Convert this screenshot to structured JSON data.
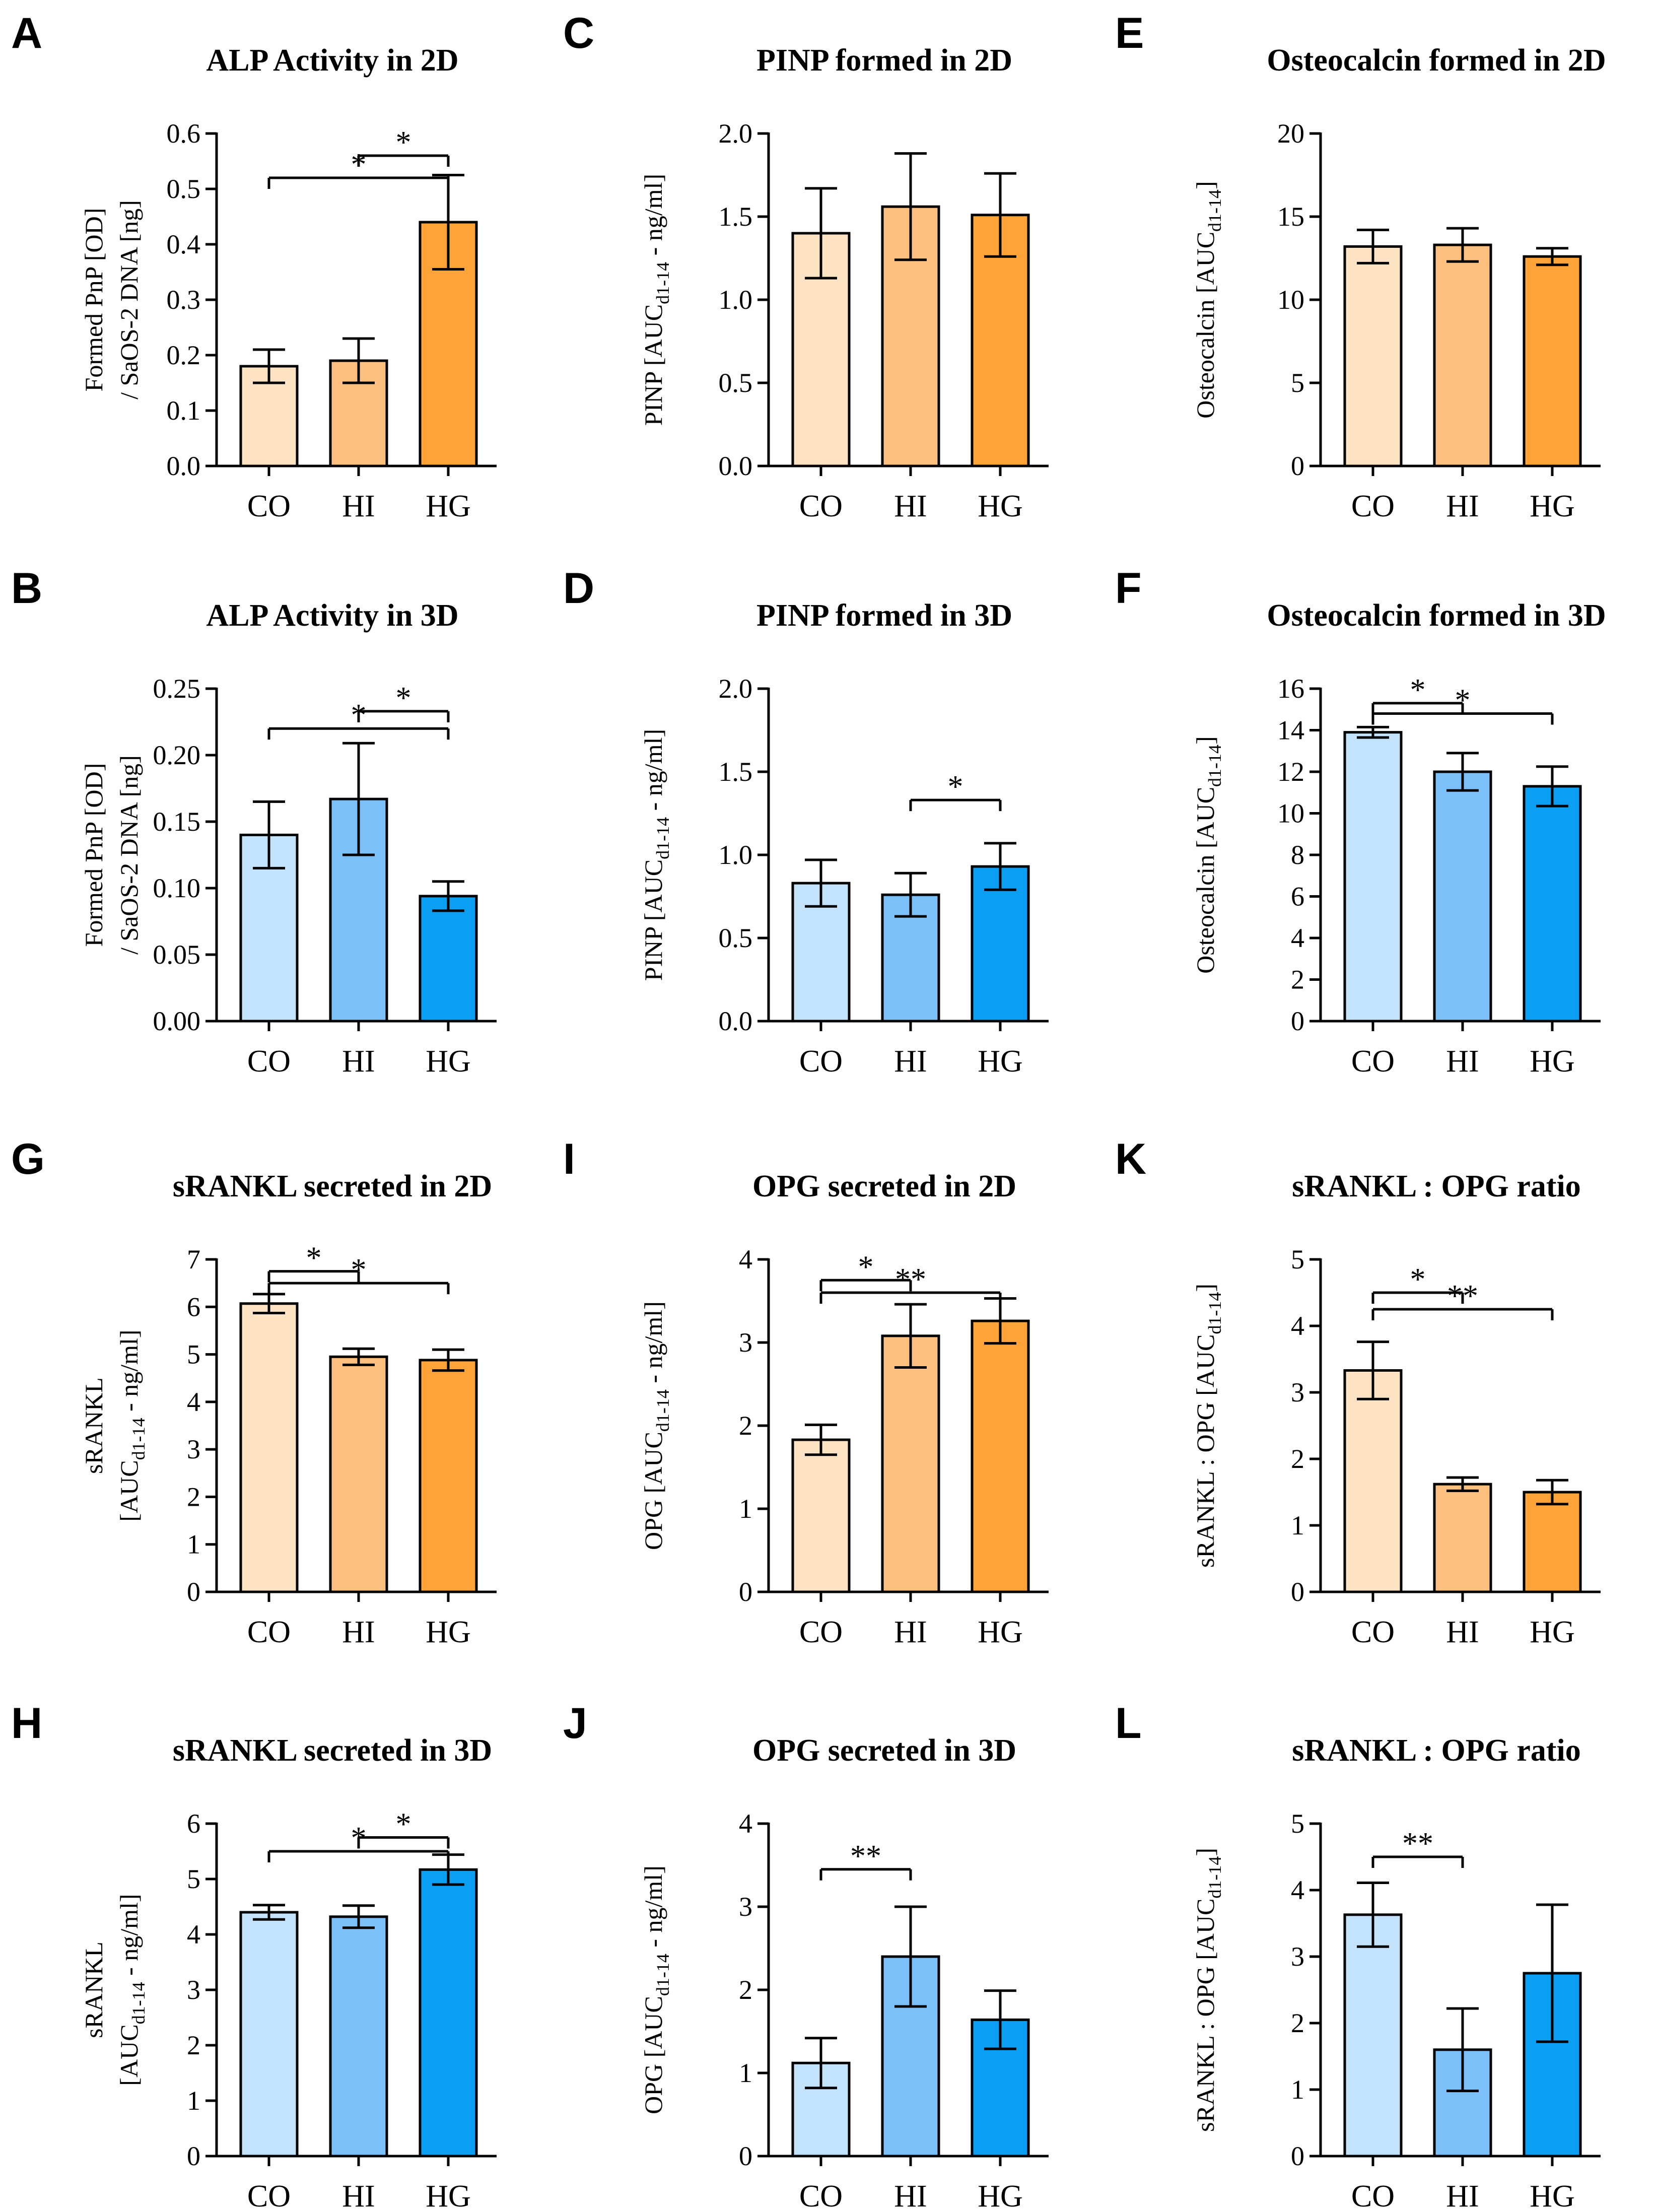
{
  "colors": {
    "orange_light": "#fde3c4",
    "orange_mid": "#fdc07e",
    "orange_dark": "#fda337",
    "blue_light": "#c3e2fb",
    "blue_mid": "#7cc0fa",
    "blue_dark": "#0b9ff3",
    "axis": "#000000"
  },
  "chart_data": [
    {
      "id": "A",
      "type": "bar",
      "title": "ALP Activity in 2D",
      "ylabel_lines": [
        "Formed PnP [OD]",
        "/ SaOS-2 DNA [ng]"
      ],
      "categories": [
        "CO",
        "HI",
        "HG"
      ],
      "values": [
        0.18,
        0.19,
        0.44
      ],
      "errors": [
        0.03,
        0.04,
        0.085
      ],
      "ylim": [
        0,
        0.6
      ],
      "yticks": [
        0,
        0.1,
        0.2,
        0.3,
        0.4,
        0.5,
        0.6
      ],
      "tick_labels": [
        "0.0",
        "0.1",
        "0.2",
        "0.3",
        "0.4",
        "0.5",
        "0.6"
      ],
      "palette": "orange",
      "significance": [
        {
          "from": 1,
          "to": 2,
          "label": "*",
          "level": 0.56
        },
        {
          "from": 0,
          "to": 2,
          "label": "*",
          "level": 0.52
        }
      ]
    },
    {
      "id": "C",
      "type": "bar",
      "title": "PINP formed in 2D",
      "ylabel_main": "PINP [AUC",
      "ylabel_sub": "d1-14",
      "ylabel_end": " - ng/ml]",
      "categories": [
        "CO",
        "HI",
        "HG"
      ],
      "values": [
        1.4,
        1.56,
        1.51
      ],
      "errors": [
        0.27,
        0.32,
        0.25
      ],
      "ylim": [
        0,
        2.0
      ],
      "yticks": [
        0,
        0.5,
        1.0,
        1.5,
        2.0
      ],
      "tick_labels": [
        "0.0",
        "0.5",
        "1.0",
        "1.5",
        "2.0"
      ],
      "palette": "orange",
      "significance": []
    },
    {
      "id": "E",
      "type": "bar",
      "title": "Osteocalcin formed in 2D",
      "ylabel_main": "Osteocalcin [AUC",
      "ylabel_sub": "d1-14",
      "ylabel_end": "]",
      "categories": [
        "CO",
        "HI",
        "HG"
      ],
      "values": [
        13.2,
        13.3,
        12.6
      ],
      "errors": [
        1.0,
        1.0,
        0.5
      ],
      "ylim": [
        0,
        20
      ],
      "yticks": [
        0,
        5,
        10,
        15,
        20
      ],
      "tick_labels": [
        "0",
        "5",
        "10",
        "15",
        "20"
      ],
      "palette": "orange",
      "significance": []
    },
    {
      "id": "B",
      "type": "bar",
      "title": "ALP Activity in 3D",
      "ylabel_lines": [
        "Formed PnP [OD]",
        "/ SaOS-2 DNA [ng]"
      ],
      "categories": [
        "CO",
        "HI",
        "HG"
      ],
      "values": [
        0.14,
        0.167,
        0.094
      ],
      "errors": [
        0.025,
        0.042,
        0.011
      ],
      "ylim": [
        0,
        0.25
      ],
      "yticks": [
        0,
        0.05,
        0.1,
        0.15,
        0.2,
        0.25
      ],
      "tick_labels": [
        "0.00",
        "0.05",
        "0.10",
        "0.15",
        "0.20",
        "0.25"
      ],
      "palette": "blue",
      "significance": [
        {
          "from": 1,
          "to": 2,
          "label": "*",
          "level": 0.233
        },
        {
          "from": 0,
          "to": 2,
          "label": "*",
          "level": 0.22
        }
      ]
    },
    {
      "id": "D",
      "type": "bar",
      "title": "PINP formed in 3D",
      "ylabel_main": "PINP [AUC",
      "ylabel_sub": "d1-14",
      "ylabel_end": " - ng/ml]",
      "categories": [
        "CO",
        "HI",
        "HG"
      ],
      "values": [
        0.83,
        0.76,
        0.93
      ],
      "errors": [
        0.14,
        0.13,
        0.14
      ],
      "ylim": [
        0,
        2.0
      ],
      "yticks": [
        0,
        0.5,
        1.0,
        1.5,
        2.0
      ],
      "tick_labels": [
        "0.0",
        "0.5",
        "1.0",
        "1.5",
        "2.0"
      ],
      "palette": "blue",
      "significance": [
        {
          "from": 1,
          "to": 2,
          "label": "*",
          "level": 1.33
        }
      ]
    },
    {
      "id": "F",
      "type": "bar",
      "title": "Osteocalcin formed in 3D",
      "ylabel_main": "Osteocalcin [AUC",
      "ylabel_sub": "d1-14",
      "ylabel_end": "]",
      "categories": [
        "CO",
        "HI",
        "HG"
      ],
      "values": [
        13.9,
        12.0,
        11.3
      ],
      "errors": [
        0.25,
        0.9,
        0.95
      ],
      "ylim": [
        0,
        16
      ],
      "yticks": [
        0,
        2,
        4,
        6,
        8,
        10,
        12,
        14,
        16
      ],
      "tick_labels": [
        "0",
        "2",
        "4",
        "6",
        "8",
        "10",
        "12",
        "14",
        "16"
      ],
      "palette": "blue",
      "significance": [
        {
          "from": 0,
          "to": 1,
          "label": "*",
          "level": 15.3
        },
        {
          "from": 0,
          "to": 2,
          "label": "*",
          "level": 14.8
        }
      ]
    },
    {
      "id": "G",
      "type": "bar",
      "title": "sRANKL secreted in 2D",
      "ylabel_lines": [
        "sRANKL"
      ],
      "ylabel_main": "[AUC",
      "ylabel_sub": "d1-14",
      "ylabel_end": " - ng/ml]",
      "categories": [
        "CO",
        "HI",
        "HG"
      ],
      "values": [
        6.07,
        4.95,
        4.88
      ],
      "errors": [
        0.2,
        0.17,
        0.22
      ],
      "ylim": [
        0,
        7
      ],
      "yticks": [
        0,
        1,
        2,
        3,
        4,
        5,
        6,
        7
      ],
      "tick_labels": [
        "0",
        "1",
        "2",
        "3",
        "4",
        "5",
        "6",
        "7"
      ],
      "palette": "orange",
      "significance": [
        {
          "from": 0,
          "to": 1,
          "label": "*",
          "level": 6.75
        },
        {
          "from": 0,
          "to": 2,
          "label": "*",
          "level": 6.5
        }
      ]
    },
    {
      "id": "I",
      "type": "bar",
      "title": "OPG secreted in 2D",
      "ylabel_main": "OPG [AUC",
      "ylabel_sub": "d1-14",
      "ylabel_end": " - ng/ml]",
      "categories": [
        "CO",
        "HI",
        "HG"
      ],
      "values": [
        1.83,
        3.08,
        3.26
      ],
      "errors": [
        0.18,
        0.38,
        0.27
      ],
      "ylim": [
        0,
        4
      ],
      "yticks": [
        0,
        1,
        2,
        3,
        4
      ],
      "tick_labels": [
        "0",
        "1",
        "2",
        "3",
        "4"
      ],
      "palette": "orange",
      "significance": [
        {
          "from": 0,
          "to": 1,
          "label": "*",
          "level": 3.75
        },
        {
          "from": 0,
          "to": 2,
          "label": "**",
          "level": 3.6
        }
      ]
    },
    {
      "id": "K",
      "type": "bar",
      "title": "sRANKL : OPG ratio",
      "ylabel_main": "sRANKL : OPG [AUC",
      "ylabel_sub": "d1-14",
      "ylabel_end": "]",
      "categories": [
        "CO",
        "HI",
        "HG"
      ],
      "values": [
        3.33,
        1.62,
        1.5
      ],
      "errors": [
        0.43,
        0.1,
        0.18
      ],
      "ylim": [
        0,
        5
      ],
      "yticks": [
        0,
        1,
        2,
        3,
        4,
        5
      ],
      "tick_labels": [
        "0",
        "1",
        "2",
        "3",
        "4",
        "5"
      ],
      "palette": "orange",
      "significance": [
        {
          "from": 0,
          "to": 1,
          "label": "*",
          "level": 4.5
        },
        {
          "from": 0,
          "to": 2,
          "label": "**",
          "level": 4.25
        }
      ]
    },
    {
      "id": "H",
      "type": "bar",
      "title": "sRANKL secreted in 3D",
      "ylabel_lines": [
        "sRANKL"
      ],
      "ylabel_main": "[AUC",
      "ylabel_sub": "d1-14",
      "ylabel_end": " - ng/ml]",
      "categories": [
        "CO",
        "HI",
        "HG"
      ],
      "values": [
        4.4,
        4.32,
        5.17
      ],
      "errors": [
        0.13,
        0.2,
        0.27
      ],
      "ylim": [
        0,
        6
      ],
      "yticks": [
        0,
        1,
        2,
        3,
        4,
        5,
        6
      ],
      "tick_labels": [
        "0",
        "1",
        "2",
        "3",
        "4",
        "5",
        "6"
      ],
      "palette": "blue",
      "significance": [
        {
          "from": 1,
          "to": 2,
          "label": "*",
          "level": 5.75
        },
        {
          "from": 0,
          "to": 2,
          "label": "*",
          "level": 5.5
        }
      ]
    },
    {
      "id": "J",
      "type": "bar",
      "title": "OPG secreted in 3D",
      "ylabel_main": "OPG [AUC",
      "ylabel_sub": "d1-14",
      "ylabel_end": " - ng/ml]",
      "categories": [
        "CO",
        "HI",
        "HG"
      ],
      "values": [
        1.12,
        2.4,
        1.64
      ],
      "errors": [
        0.3,
        0.6,
        0.35
      ],
      "ylim": [
        0,
        4
      ],
      "yticks": [
        0,
        1,
        2,
        3,
        4
      ],
      "tick_labels": [
        "0",
        "1",
        "2",
        "3",
        "4"
      ],
      "palette": "blue",
      "significance": [
        {
          "from": 0,
          "to": 1,
          "label": "**",
          "level": 3.45
        }
      ]
    },
    {
      "id": "L",
      "type": "bar",
      "title": "sRANKL : OPG ratio",
      "ylabel_main": "sRANKL : OPG [AUC",
      "ylabel_sub": "d1-14",
      "ylabel_end": "]",
      "categories": [
        "CO",
        "HI",
        "HG"
      ],
      "values": [
        3.63,
        1.6,
        2.75
      ],
      "errors": [
        0.48,
        0.62,
        1.03
      ],
      "ylim": [
        0,
        5
      ],
      "yticks": [
        0,
        1,
        2,
        3,
        4,
        5
      ],
      "tick_labels": [
        "0",
        "1",
        "2",
        "3",
        "4",
        "5"
      ],
      "palette": "blue",
      "significance": [
        {
          "from": 0,
          "to": 1,
          "label": "**",
          "level": 4.5
        }
      ]
    }
  ]
}
